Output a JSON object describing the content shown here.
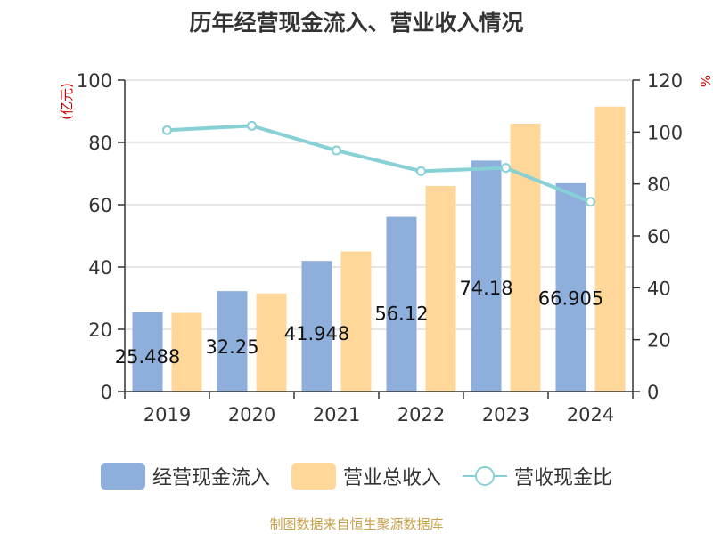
{
  "colors": {
    "cash_flow": "#8eaedb",
    "revenue": "#ffd899",
    "ratio": "#86d0d6",
    "axis_unit": "#cc0000",
    "source": "#c8a04a"
  },
  "chart_data": {
    "type": "bar",
    "title": "历年经营现金流入、营业收入情况",
    "categories": [
      "2019",
      "2020",
      "2021",
      "2022",
      "2023",
      "2024"
    ],
    "series": [
      {
        "name": "经营现金流入",
        "type": "bar",
        "axis": "left",
        "values": [
          25.488,
          32.25,
          41.948,
          56.12,
          74.18,
          66.905
        ],
        "labels": [
          "25.488",
          "32.25",
          "41.948",
          "56.12",
          "74.18",
          "66.905"
        ]
      },
      {
        "name": "营业总收入",
        "type": "bar",
        "axis": "left",
        "values": [
          25.3,
          31.5,
          45.0,
          66.0,
          86.0,
          91.5
        ]
      },
      {
        "name": "营收现金比",
        "type": "line",
        "axis": "right",
        "values": [
          100.7,
          102.4,
          92.9,
          84.9,
          86.2,
          73.1
        ]
      }
    ],
    "left_axis": {
      "unit": "(亿元)",
      "ylim": [
        0,
        100
      ],
      "ticks": [
        "0",
        "20",
        "40",
        "60",
        "80",
        "100"
      ]
    },
    "right_axis": {
      "unit": "%",
      "ylim": [
        0,
        120
      ],
      "ticks": [
        "0",
        "20",
        "40",
        "60",
        "80",
        "100",
        "120"
      ]
    },
    "legend_position": "bottom",
    "grid": true
  },
  "source_text": "制图数据来自恒生聚源数据库"
}
